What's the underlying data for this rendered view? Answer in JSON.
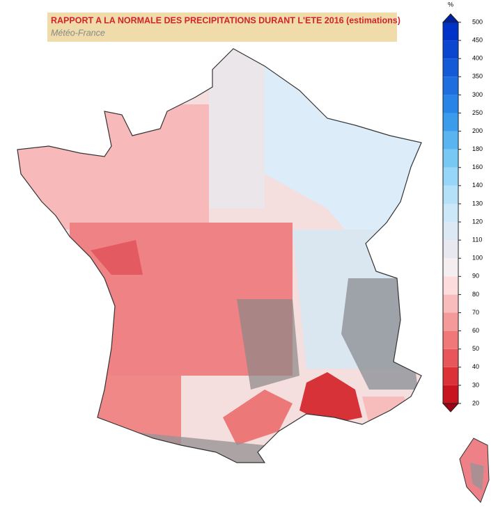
{
  "header": {
    "title": "RAPPORT A LA NORMALE DES PRECIPITATIONS DURANT L'ETE 2016 (estimations)",
    "source": "Météo-France"
  },
  "colorbar": {
    "unit": "%",
    "ticks": [
      20,
      30,
      40,
      50,
      60,
      70,
      80,
      90,
      100,
      110,
      120,
      130,
      140,
      160,
      180,
      200,
      250,
      300,
      350,
      400,
      450,
      500
    ],
    "colors": [
      "#c8141e",
      "#dc3237",
      "#e8555a",
      "#f07878",
      "#f59a9a",
      "#f9bcbc",
      "#fcdcdc",
      "#f4eef0",
      "#e8e8f0",
      "#dce8f4",
      "#cce8f8",
      "#b4e0f8",
      "#96d6f8",
      "#78c8f4",
      "#5ab4f0",
      "#3c9cec",
      "#2884e6",
      "#1e6ee0",
      "#145ad8",
      "#0a46d0",
      "#0032c8"
    ],
    "under_color": "#a00014",
    "over_color": "#0020a0"
  }
}
